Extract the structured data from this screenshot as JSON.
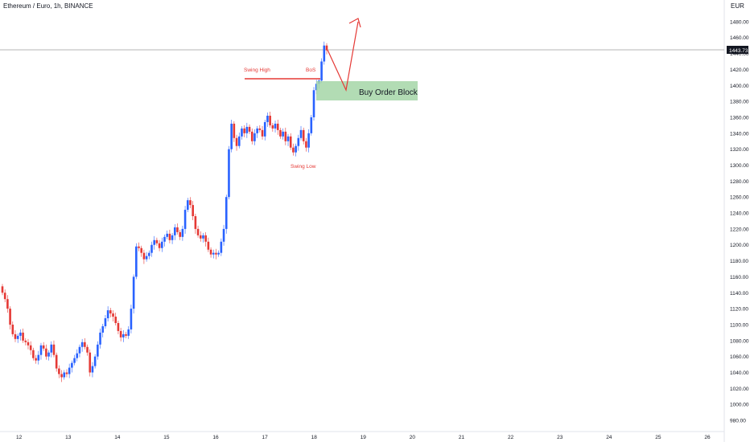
{
  "header": {
    "symbol_title": "Ethereum / Euro, 1h, BINANCE",
    "currency": "EUR"
  },
  "colors": {
    "up": "#2962ff",
    "down": "#e53935",
    "annotation": "#e53935",
    "order_block_fill": "#a5d6a7",
    "order_block_text": "#131722",
    "price_line": "#9e9e9e",
    "price_tag_bg": "#131722",
    "axis_text": "#131722"
  },
  "chart_data": {
    "type": "candlestick",
    "title": "Ethereum / Euro, 1h, BINANCE",
    "ylim": [
      975,
      1493
    ],
    "y_ticks": [
      "980.00",
      "1000.00",
      "1020.00",
      "1040.00",
      "1060.00",
      "1080.00",
      "1100.00",
      "1120.00",
      "1140.00",
      "1160.00",
      "1180.00",
      "1200.00",
      "1220.00",
      "1240.00",
      "1260.00",
      "1280.00",
      "1300.00",
      "1320.00",
      "1340.00",
      "1360.00",
      "1380.00",
      "1400.00",
      "1420.00",
      "1440.00",
      "1460.00",
      "1480.00"
    ],
    "x_ticks": [
      "12",
      "13",
      "14",
      "15",
      "16",
      "17",
      "18",
      "19",
      "20",
      "21",
      "22",
      "23",
      "24",
      "25",
      "26"
    ],
    "current_price": "1443.73",
    "candles": [
      [
        1148,
        1140
      ],
      [
        1140,
        1132
      ],
      [
        1132,
        1120
      ],
      [
        1120,
        1100
      ],
      [
        1100,
        1088
      ],
      [
        1088,
        1082
      ],
      [
        1082,
        1086
      ],
      [
        1086,
        1090
      ],
      [
        1090,
        1080
      ],
      [
        1080,
        1078
      ],
      [
        1078,
        1074
      ],
      [
        1074,
        1068
      ],
      [
        1068,
        1058
      ],
      [
        1058,
        1055
      ],
      [
        1055,
        1062
      ],
      [
        1062,
        1074
      ],
      [
        1074,
        1070
      ],
      [
        1070,
        1060
      ],
      [
        1060,
        1065
      ],
      [
        1065,
        1075
      ],
      [
        1075,
        1062
      ],
      [
        1062,
        1045
      ],
      [
        1045,
        1038
      ],
      [
        1038,
        1034
      ],
      [
        1034,
        1040
      ],
      [
        1040,
        1038
      ],
      [
        1038,
        1046
      ],
      [
        1046,
        1052
      ],
      [
        1052,
        1058
      ],
      [
        1058,
        1064
      ],
      [
        1064,
        1072
      ],
      [
        1072,
        1078
      ],
      [
        1078,
        1072
      ],
      [
        1072,
        1065
      ],
      [
        1065,
        1040
      ],
      [
        1040,
        1048
      ],
      [
        1048,
        1060
      ],
      [
        1060,
        1075
      ],
      [
        1075,
        1090
      ],
      [
        1090,
        1098
      ],
      [
        1098,
        1108
      ],
      [
        1108,
        1118
      ],
      [
        1118,
        1114
      ],
      [
        1114,
        1110
      ],
      [
        1110,
        1102
      ],
      [
        1102,
        1092
      ],
      [
        1092,
        1084
      ],
      [
        1084,
        1088
      ],
      [
        1088,
        1086
      ],
      [
        1086,
        1094
      ],
      [
        1094,
        1120
      ],
      [
        1120,
        1160
      ],
      [
        1160,
        1198
      ],
      [
        1198,
        1196
      ],
      [
        1196,
        1190
      ],
      [
        1190,
        1182
      ],
      [
        1182,
        1186
      ],
      [
        1186,
        1190
      ],
      [
        1190,
        1200
      ],
      [
        1200,
        1206
      ],
      [
        1206,
        1202
      ],
      [
        1202,
        1196
      ],
      [
        1196,
        1204
      ],
      [
        1204,
        1210
      ],
      [
        1210,
        1214
      ],
      [
        1214,
        1206
      ],
      [
        1206,
        1212
      ],
      [
        1212,
        1222
      ],
      [
        1222,
        1216
      ],
      [
        1216,
        1210
      ],
      [
        1210,
        1220
      ],
      [
        1220,
        1244
      ],
      [
        1244,
        1256
      ],
      [
        1256,
        1250
      ],
      [
        1250,
        1236
      ],
      [
        1236,
        1220
      ],
      [
        1220,
        1212
      ],
      [
        1212,
        1208
      ],
      [
        1208,
        1212
      ],
      [
        1212,
        1204
      ],
      [
        1204,
        1194
      ],
      [
        1194,
        1188
      ],
      [
        1188,
        1190
      ],
      [
        1190,
        1188
      ],
      [
        1188,
        1190
      ],
      [
        1190,
        1204
      ],
      [
        1204,
        1220
      ],
      [
        1220,
        1260
      ],
      [
        1260,
        1320
      ],
      [
        1320,
        1352
      ],
      [
        1352,
        1334
      ],
      [
        1334,
        1324
      ],
      [
        1324,
        1336
      ],
      [
        1336,
        1346
      ],
      [
        1346,
        1340
      ],
      [
        1340,
        1348
      ],
      [
        1348,
        1342
      ],
      [
        1342,
        1330
      ],
      [
        1330,
        1340
      ],
      [
        1340,
        1346
      ],
      [
        1346,
        1344
      ],
      [
        1344,
        1336
      ],
      [
        1336,
        1354
      ],
      [
        1354,
        1362
      ],
      [
        1362,
        1350
      ],
      [
        1350,
        1346
      ],
      [
        1346,
        1352
      ],
      [
        1352,
        1344
      ],
      [
        1344,
        1336
      ],
      [
        1336,
        1342
      ],
      [
        1342,
        1330
      ],
      [
        1330,
        1336
      ],
      [
        1336,
        1322
      ],
      [
        1322,
        1316
      ],
      [
        1316,
        1324
      ],
      [
        1324,
        1334
      ],
      [
        1334,
        1344
      ],
      [
        1344,
        1330
      ],
      [
        1330,
        1322
      ],
      [
        1322,
        1340
      ],
      [
        1340,
        1360
      ],
      [
        1360,
        1394
      ],
      [
        1394,
        1402
      ],
      [
        1402,
        1406
      ],
      [
        1406,
        1430
      ],
      [
        1430,
        1450
      ],
      [
        1450,
        1444
      ]
    ],
    "annotations": {
      "swing_high": "Swing High",
      "bos": "BoS",
      "swing_low": "Swing Low",
      "order_block": "Buy Order Block"
    }
  }
}
